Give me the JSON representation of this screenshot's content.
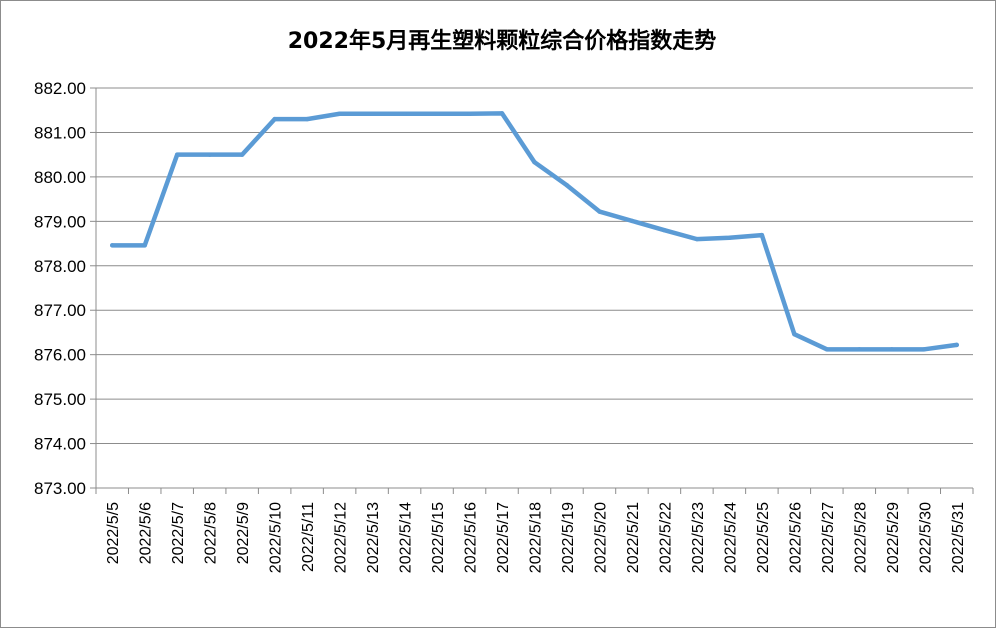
{
  "chart_data": {
    "type": "line",
    "title": "2022年5月再生塑料颗粒综合价格指数走势",
    "xlabel": "",
    "ylabel": "",
    "ylim": [
      873,
      882
    ],
    "y_ticks": [
      "873.00",
      "874.00",
      "875.00",
      "876.00",
      "877.00",
      "878.00",
      "879.00",
      "880.00",
      "881.00",
      "882.00"
    ],
    "categories": [
      "2022/5/5",
      "2022/5/6",
      "2022/5/7",
      "2022/5/8",
      "2022/5/9",
      "2022/5/10",
      "2022/5/11",
      "2022/5/12",
      "2022/5/13",
      "2022/5/14",
      "2022/5/15",
      "2022/5/16",
      "2022/5/17",
      "2022/5/18",
      "2022/5/19",
      "2022/5/20",
      "2022/5/21",
      "2022/5/22",
      "2022/5/23",
      "2022/5/24",
      "2022/5/25",
      "2022/5/26",
      "2022/5/27",
      "2022/5/28",
      "2022/5/29",
      "2022/5/30",
      "2022/5/31"
    ],
    "series": [
      {
        "values": [
          878.46,
          878.46,
          880.5,
          880.5,
          880.5,
          881.3,
          881.3,
          881.42,
          881.42,
          881.42,
          881.42,
          881.42,
          881.43,
          880.33,
          879.81,
          879.22,
          879.01,
          878.8,
          878.6,
          878.63,
          878.69,
          876.46,
          876.12,
          876.12,
          876.12,
          876.12,
          876.22
        ],
        "color": "#5b9bd5"
      }
    ],
    "grid": true,
    "legend": "none"
  }
}
